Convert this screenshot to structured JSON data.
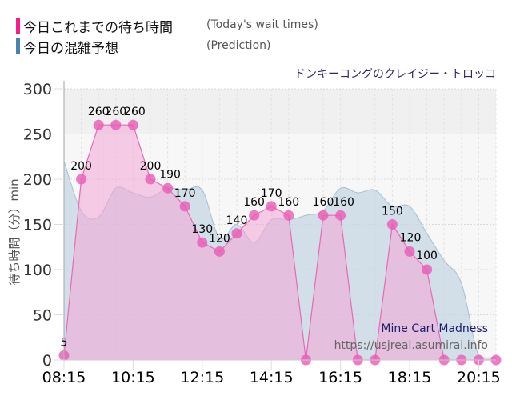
{
  "legend": [
    {
      "label": "今日これまでの待ち時間",
      "sublabel": "(Today's wait times)",
      "color": "#ff1a8c"
    },
    {
      "label": "今日の混雑予想",
      "sublabel": "(Prediction)",
      "color": "#4682b4"
    }
  ],
  "attraction_title": "ドンキーコングのクレイジー・トロッコ",
  "watermark": {
    "name": "Mine Cart Madness",
    "url": "https://usjreal.asumirai.info"
  },
  "colors": {
    "actual_line": "#e868b8",
    "actual_fill": "#f4a6d6",
    "actual_marker": "#ea5ab5",
    "prediction_fill": "#c6d6e3",
    "prediction_line": "#a8bfd2"
  },
  "chart_data": {
    "type": "area",
    "title": "ドンキーコングのクレイジー・トロッコ",
    "xlabel": "",
    "ylabel": "待ち時間（分）min",
    "ylim": [
      0,
      300
    ],
    "yticks": [
      0,
      50,
      100,
      150,
      200,
      250,
      300
    ],
    "xticks": [
      "08:15",
      "10:15",
      "12:15",
      "14:15",
      "16:15",
      "18:15",
      "20:15"
    ],
    "grid": true,
    "legend_position": "top-left",
    "x": [
      "08:15",
      "08:45",
      "09:15",
      "09:45",
      "10:15",
      "10:45",
      "11:15",
      "11:45",
      "12:15",
      "12:45",
      "13:15",
      "13:45",
      "14:15",
      "14:45",
      "15:15",
      "15:45",
      "16:15",
      "16:45",
      "17:15",
      "17:45",
      "18:15",
      "18:45",
      "19:15",
      "19:45",
      "20:15",
      "20:45"
    ],
    "series": [
      {
        "name": "今日これまでの待ち時間 (Today's wait times)",
        "values": [
          5,
          200,
          260,
          260,
          260,
          200,
          190,
          170,
          130,
          120,
          140,
          160,
          170,
          160,
          0,
          160,
          160,
          0,
          0,
          150,
          120,
          100,
          0,
          0,
          0,
          0
        ],
        "labels": [
          5,
          200,
          260,
          260,
          260,
          200,
          190,
          170,
          130,
          120,
          140,
          160,
          170,
          160,
          null,
          160,
          160,
          null,
          null,
          150,
          120,
          100,
          null,
          null,
          null,
          null
        ]
      },
      {
        "name": "今日の混雑予想 (Prediction)",
        "values": [
          220,
          165,
          158,
          190,
          185,
          180,
          190,
          188,
          188,
          135,
          150,
          130,
          155,
          155,
          160,
          165,
          190,
          185,
          188,
          170,
          170,
          140,
          110,
          85,
          5,
          3
        ]
      }
    ]
  }
}
